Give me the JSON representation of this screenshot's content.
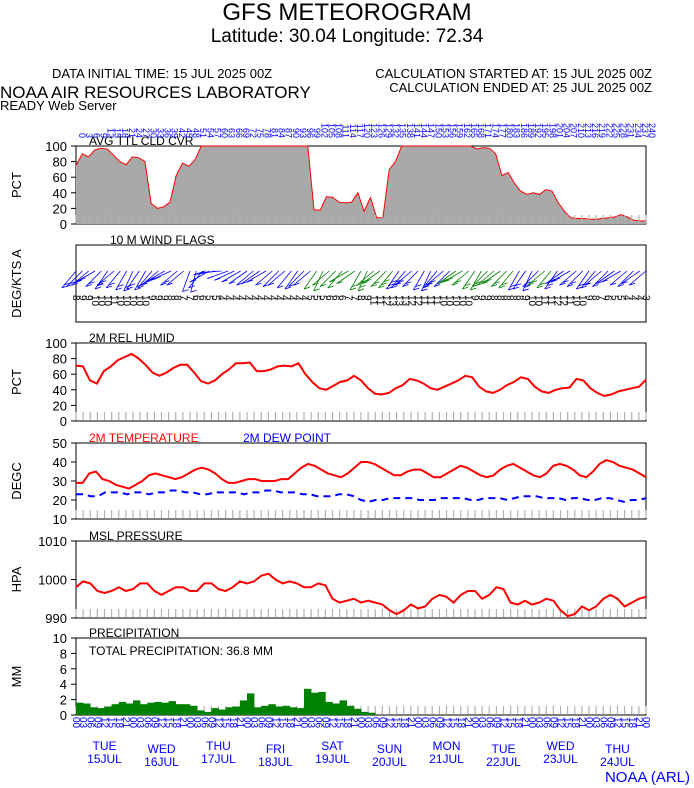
{
  "header": {
    "title": "GFS METEOROGRAM",
    "subtitle": "Latitude: 30.04 Longitude:  72.34",
    "init_time": "DATA INITIAL TIME: 15 JUL 2025 00Z",
    "calc_started": "CALCULATION STARTED AT: 15 JUL 2025 00Z",
    "calc_ended": "CALCULATION ENDED AT: 25 JUL 2025 00Z",
    "org": "NOAA AIR RESOURCES LABORATORY",
    "server": "READY Web Server",
    "footer": "NOAA (ARL)"
  },
  "colors": {
    "axis": "#000000",
    "cloud_fill": "#a9a9a9",
    "cloud_line": "#ff0000",
    "temp": "#ff0000",
    "dewpoint": "#0000ff",
    "humidity": "#ff0000",
    "pressure": "#ff0000",
    "precip": "#008000",
    "wind_blue": "#0000ff",
    "wind_green": "#008000",
    "hour_labels": "#0000ff",
    "tick_marks": "#b0b0b0"
  },
  "time_axis": {
    "hour_labels": [
      "00",
      "03",
      "06",
      "09",
      "12",
      "15",
      "18",
      "21",
      "00",
      "03",
      "06",
      "09",
      "12",
      "15",
      "18",
      "21",
      "00",
      "03",
      "06",
      "09",
      "12",
      "15",
      "18",
      "21",
      "00",
      "03",
      "06",
      "09",
      "12",
      "15",
      "18",
      "21",
      "00",
      "03",
      "06",
      "09",
      "12",
      "15",
      "18",
      "21",
      "00",
      "03",
      "06",
      "09",
      "12",
      "15",
      "18",
      "21",
      "00",
      "03",
      "06",
      "09",
      "12",
      "15",
      "18",
      "21",
      "00",
      "03",
      "06",
      "09",
      "12",
      "15",
      "18",
      "21",
      "00",
      "03",
      "06",
      "09",
      "12",
      "15",
      "18",
      "21",
      "00",
      "03",
      "06",
      "09",
      "12",
      "15",
      "18",
      "21",
      "00"
    ],
    "days": [
      {
        "dow": "TUE",
        "date": "15JUL"
      },
      {
        "dow": "WED",
        "date": "16JUL"
      },
      {
        "dow": "THU",
        "date": "17JUL"
      },
      {
        "dow": "FRI",
        "date": "18JUL"
      },
      {
        "dow": "SAT",
        "date": "19JUL"
      },
      {
        "dow": "SUN",
        "date": "20JUL"
      },
      {
        "dow": "MON",
        "date": "21JUL"
      },
      {
        "dow": "TUE",
        "date": "22JUL"
      },
      {
        "dow": "WED",
        "date": "23JUL"
      },
      {
        "dow": "THU",
        "date": "24JUL"
      }
    ]
  },
  "chart_data": [
    {
      "type": "area",
      "title": "AVG TTL CLD CVR",
      "ylabel": "PCT",
      "ylim": [
        0,
        100
      ],
      "yticks": [
        "100",
        "80",
        "60",
        "40",
        "20",
        "0"
      ],
      "x_hours": 240,
      "values": [
        75,
        90,
        86,
        95,
        97,
        96,
        88,
        80,
        76,
        86,
        85,
        80,
        26,
        20,
        22,
        28,
        62,
        78,
        74,
        82,
        100,
        100,
        100,
        100,
        100,
        100,
        100,
        100,
        100,
        100,
        100,
        100,
        100,
        100,
        100,
        100,
        100,
        100,
        18,
        18,
        35,
        34,
        28,
        27,
        28,
        40,
        16,
        34,
        8,
        8,
        70,
        80,
        100,
        100,
        100,
        100,
        100,
        100,
        100,
        100,
        100,
        100,
        100,
        100,
        96,
        98,
        97,
        90,
        62,
        66,
        52,
        42,
        38,
        40,
        38,
        44,
        42,
        27,
        16,
        8,
        7,
        7,
        6,
        6,
        7,
        8,
        9,
        12,
        9,
        5,
        4,
        4
      ],
      "top_labels": [
        "0",
        "3",
        "6",
        "9",
        "12",
        "15",
        "18",
        "21",
        "24",
        "27",
        "30",
        "33",
        "36",
        "39",
        "42",
        "45",
        "48",
        "51",
        "54",
        "57",
        "60",
        "63",
        "66",
        "69",
        "72",
        "75",
        "78",
        "81",
        "84",
        "87",
        "90",
        "93",
        "96",
        "99",
        "102",
        "105",
        "108",
        "111",
        "114",
        "117",
        "120",
        "123",
        "126",
        "129",
        "132",
        "135",
        "138",
        "141",
        "144",
        "147",
        "150",
        "153",
        "156",
        "159",
        "162",
        "165",
        "168",
        "171",
        "174",
        "177",
        "180",
        "183",
        "186",
        "189",
        "192",
        "195",
        "198",
        "201",
        "204",
        "207",
        "210",
        "213",
        "216",
        "219",
        "222",
        "225",
        "228",
        "231",
        "234",
        "237",
        "240"
      ]
    },
    {
      "type": "wind_flags",
      "title": "10 M  WIND FLAGS",
      "ylabel": "DEG/KTS A",
      "speeds": [
        "8",
        "9",
        "9",
        "10",
        "10",
        "10",
        "11",
        "10",
        "10",
        "10",
        "10",
        "10",
        "9",
        "9",
        "9",
        "8",
        "8",
        "7",
        "7",
        "6",
        "6",
        "5",
        "5",
        "4",
        "4",
        "4",
        "4",
        "4",
        "4",
        "4",
        "4",
        "4",
        "4",
        "4",
        "4",
        "4",
        "4",
        "5",
        "5",
        "5",
        "6",
        "6",
        "6",
        "7",
        "7",
        "8",
        "9",
        "11",
        "11",
        "12",
        "13",
        "13",
        "13",
        "12",
        "12",
        "11",
        "11",
        "11",
        "10",
        "10",
        "10",
        "10",
        "10",
        "9",
        "9",
        "9",
        "8",
        "8",
        "8",
        "8",
        "8",
        "9",
        "10",
        "10",
        "11",
        "11",
        "12",
        "12",
        "11",
        "10",
        "10",
        "9",
        "8",
        "7",
        "6",
        "5",
        "5",
        "4",
        "4",
        "4",
        "3"
      ],
      "directions": [
        220,
        225,
        230,
        240,
        225,
        215,
        230,
        220,
        210,
        205,
        215,
        210,
        220,
        230,
        240,
        245,
        230,
        230,
        200,
        195,
        220,
        240,
        260,
        265,
        250,
        245,
        240,
        235,
        230,
        235,
        240,
        230,
        225,
        230,
        220,
        215,
        225,
        230,
        215,
        205,
        230,
        225,
        220,
        240,
        235,
        210,
        205,
        230,
        235,
        225,
        220,
        215,
        220,
        230,
        225,
        210,
        205,
        220,
        230,
        225,
        235,
        240,
        230,
        215,
        210,
        225,
        230,
        235,
        225,
        220,
        210,
        215,
        205,
        225,
        230,
        220,
        215,
        235,
        240,
        230,
        225,
        215,
        220,
        230,
        225,
        235,
        240,
        230,
        225,
        235,
        230
      ],
      "green_ranges": [
        [
          99,
          135
        ],
        [
          160,
          185
        ],
        [
          196,
          200
        ]
      ]
    },
    {
      "type": "line",
      "title": "2M REL HUMID",
      "ylabel": "PCT",
      "ylim": [
        0,
        100
      ],
      "yticks": [
        "100",
        "80",
        "60",
        "40",
        "20",
        "0"
      ],
      "values": [
        71,
        70,
        52,
        48,
        64,
        70,
        78,
        82,
        86,
        80,
        72,
        62,
        58,
        62,
        68,
        72,
        72,
        62,
        51,
        48,
        52,
        60,
        66,
        74,
        74,
        75,
        64,
        64,
        66,
        70,
        71,
        70,
        74,
        60,
        50,
        42,
        40,
        45,
        50,
        52,
        58,
        52,
        42,
        35,
        34,
        36,
        42,
        46,
        54,
        52,
        48,
        42,
        40,
        44,
        48,
        52,
        58,
        56,
        44,
        38,
        36,
        40,
        46,
        50,
        56,
        54,
        44,
        38,
        36,
        40,
        42,
        43,
        54,
        52,
        42,
        36,
        32,
        34,
        38,
        40,
        42,
        44,
        53
      ]
    },
    {
      "type": "line",
      "title": "2M TEMPERATURE",
      "series": [
        {
          "name": "2M TEMPERATURE",
          "values": [
            29,
            29,
            34,
            35,
            31,
            30,
            28,
            27,
            26,
            28,
            30,
            33,
            34,
            33,
            32,
            31,
            32,
            34,
            36,
            37,
            36,
            34,
            31,
            29,
            29,
            30,
            31,
            31,
            30,
            30,
            30,
            31,
            31,
            34,
            37,
            39,
            38,
            36,
            34,
            33,
            32,
            34,
            37,
            40,
            40,
            39,
            37,
            35,
            33,
            33,
            35,
            36,
            36,
            34,
            32,
            32,
            34,
            36,
            38,
            37,
            35,
            33,
            32,
            33,
            36,
            38,
            39,
            37,
            35,
            33,
            32,
            34,
            38,
            39,
            38,
            36,
            33,
            32,
            35,
            39,
            41,
            40,
            38,
            37,
            36,
            34,
            32
          ]
        },
        {
          "name": "2M  DEW POINT",
          "values": [
            23,
            23,
            22,
            22,
            24,
            24,
            24,
            23,
            24,
            24,
            23,
            24,
            24,
            25,
            25,
            24,
            24,
            23,
            23,
            24,
            24,
            24,
            24,
            23,
            24,
            24,
            25,
            25,
            24,
            24,
            24,
            23,
            23,
            22,
            22,
            22,
            23,
            23,
            22,
            20,
            19,
            20,
            20,
            21,
            21,
            21,
            21,
            20,
            20,
            20,
            21,
            21,
            21,
            21,
            20,
            20,
            21,
            21,
            21,
            20,
            21,
            22,
            22,
            22,
            21,
            21,
            21,
            20,
            21,
            21,
            20,
            20,
            21,
            21,
            20,
            19,
            20,
            20,
            21
          ]
        }
      ],
      "ylabel": "DEGC",
      "ylim": [
        10,
        50
      ],
      "yticks": [
        "50",
        "40",
        "30",
        "20",
        "10"
      ]
    },
    {
      "type": "line",
      "title": "MSL PRESSURE",
      "ylabel": "HPA",
      "ylim": [
        990,
        1010
      ],
      "yticks": [
        "1010",
        "1000",
        "990"
      ],
      "values": [
        998,
        999.5,
        999,
        997,
        996.5,
        997,
        998,
        997,
        997.5,
        999,
        999,
        997,
        996,
        997,
        998,
        998,
        997,
        997,
        999,
        999,
        997.5,
        997,
        998,
        999.5,
        999,
        999.5,
        1001,
        1001.5,
        1000,
        999,
        999.5,
        999,
        998,
        998,
        999,
        998.5,
        995,
        994,
        994.5,
        995,
        994,
        994.5,
        994,
        993.5,
        992,
        991,
        992,
        993.5,
        992.5,
        993,
        995,
        996,
        995.5,
        994,
        996,
        997,
        997,
        995,
        996,
        998,
        997.5,
        994,
        993.5,
        994.5,
        993.5,
        994,
        995,
        994.5,
        992,
        990.5,
        991,
        993,
        992,
        993,
        995,
        996,
        995,
        993,
        994,
        995,
        995.5
      ]
    },
    {
      "type": "bar",
      "title": "PRECIPITATION",
      "annotation": "TOTAL PRECIPITATION:  36.8 MM",
      "ylabel": "MM",
      "ylim": [
        0,
        10
      ],
      "yticks": [
        "10",
        "8",
        "6",
        "4",
        "2",
        "0"
      ],
      "values": [
        1.6,
        1.5,
        1.0,
        0.9,
        1.1,
        1.4,
        1.7,
        1.5,
        1.9,
        1.4,
        1.6,
        1.7,
        1.6,
        1.8,
        1.4,
        1.4,
        1.2,
        0.6,
        0.4,
        0.9,
        0.7,
        1.0,
        1.1,
        1.9,
        2.8,
        1.0,
        1.2,
        1.4,
        1.1,
        1.2,
        1.0,
        0.9,
        3.4,
        2.9,
        3.0,
        1.7,
        1.5,
        1.9,
        1.2,
        0.8,
        0.4,
        0.3
      ]
    }
  ]
}
